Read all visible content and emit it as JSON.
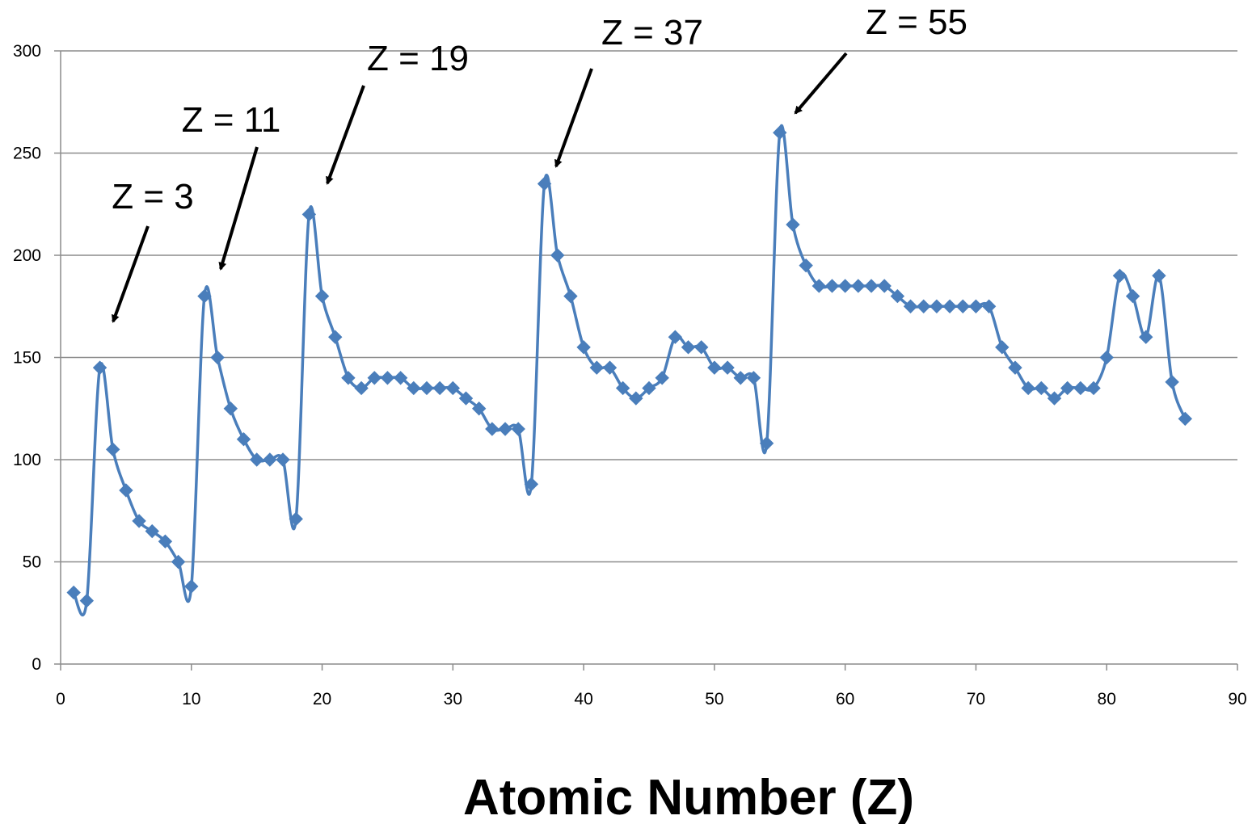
{
  "chart_data": {
    "type": "line",
    "title": "",
    "xlabel": "Atomic Number (Z)",
    "ylabel": "",
    "xlim": [
      0,
      90
    ],
    "ylim": [
      0,
      300
    ],
    "xticks": [
      0,
      10,
      20,
      30,
      40,
      50,
      60,
      70,
      80,
      90
    ],
    "yticks": [
      0,
      50,
      100,
      150,
      200,
      250,
      300
    ],
    "grid": "horizontal",
    "marker": "diamond",
    "colors": {
      "series": "#4a7ebb",
      "grid": "#8c8c8c",
      "axis": "#8c8c8c",
      "text": "#000000"
    },
    "series": [
      {
        "name": "",
        "x": [
          1,
          2,
          3,
          4,
          5,
          6,
          7,
          8,
          9,
          10,
          11,
          12,
          13,
          14,
          15,
          16,
          17,
          18,
          19,
          20,
          21,
          22,
          23,
          24,
          25,
          26,
          27,
          28,
          29,
          30,
          31,
          32,
          33,
          34,
          35,
          36,
          37,
          38,
          39,
          40,
          41,
          42,
          43,
          44,
          45,
          46,
          47,
          48,
          49,
          50,
          51,
          52,
          53,
          54,
          55,
          56,
          57,
          58,
          59,
          60,
          61,
          62,
          63,
          64,
          65,
          66,
          67,
          68,
          69,
          70,
          71,
          72,
          73,
          74,
          75,
          76,
          77,
          78,
          79,
          80,
          81,
          82,
          83,
          84,
          85,
          86
        ],
        "values": [
          35,
          31,
          145,
          105,
          85,
          70,
          65,
          60,
          50,
          38,
          180,
          150,
          125,
          110,
          100,
          100,
          100,
          71,
          220,
          180,
          160,
          140,
          135,
          140,
          140,
          140,
          135,
          135,
          135,
          135,
          130,
          125,
          115,
          115,
          115,
          88,
          235,
          200,
          180,
          155,
          145,
          145,
          135,
          130,
          135,
          140,
          160,
          155,
          155,
          145,
          145,
          140,
          140,
          108,
          260,
          215,
          195,
          185,
          185,
          185,
          185,
          185,
          185,
          180,
          175,
          175,
          175,
          175,
          175,
          175,
          175,
          155,
          145,
          135,
          135,
          130,
          135,
          135,
          135,
          150,
          190,
          180,
          160,
          190,
          138,
          120
        ]
      }
    ],
    "annotations": [
      {
        "text": "Z = 3",
        "target_x": 3,
        "target_y": 145
      },
      {
        "text": "Z = 11",
        "target_x": 11,
        "target_y": 180
      },
      {
        "text": "Z = 19",
        "target_x": 19,
        "target_y": 220
      },
      {
        "text": "Z = 37",
        "target_x": 37,
        "target_y": 235
      },
      {
        "text": "Z = 55",
        "target_x": 55,
        "target_y": 260
      }
    ]
  }
}
